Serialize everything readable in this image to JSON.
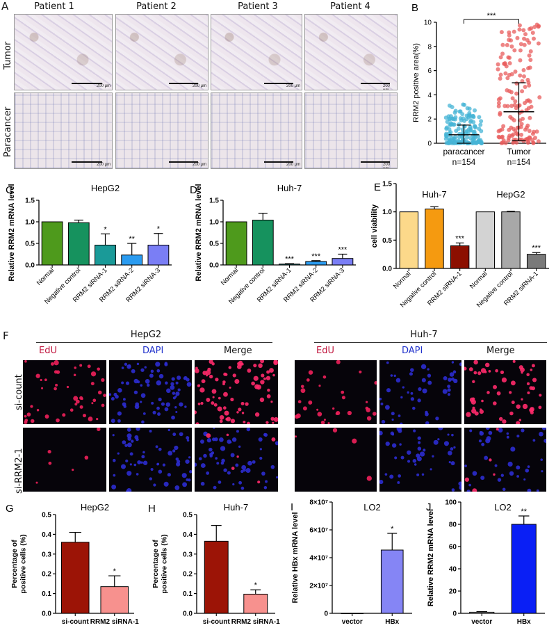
{
  "panels": {
    "A": {
      "letter": "A",
      "columns": [
        "Patient 1",
        "Patient 2",
        "Patient 3",
        "Patient 4"
      ],
      "rows": [
        "Tumor",
        "Paracancer"
      ],
      "scale_text": "200 μm"
    },
    "F": {
      "letter": "F",
      "groups": [
        {
          "title": "HepG2",
          "channels": [
            "EdU",
            "DAPI",
            "Merge"
          ]
        },
        {
          "title": "Huh-7",
          "channels": [
            "EdU",
            "DAPI",
            "Merge"
          ]
        }
      ],
      "rows": [
        "si-count",
        "si-RRM2-1"
      ]
    }
  },
  "colors": {
    "edu_label": "#c0143c",
    "dapi_label": "#2233cc"
  },
  "chart_data": [
    {
      "id": "B",
      "letter": "B",
      "type": "scatter",
      "title": "",
      "ylabel": "RRM2 positive area(%)",
      "ylim": [
        0,
        10
      ],
      "yticks": [
        "0",
        "2",
        "4",
        "6",
        "8",
        "10"
      ],
      "categories": [
        "paracancer",
        "Tumor"
      ],
      "n_labels": [
        "n=154",
        "n=154"
      ],
      "colors": [
        "#45b4d6",
        "#e85c5c"
      ],
      "summary": [
        {
          "mean": 0.7,
          "sd_low": 0.0,
          "sd_high": 1.5
        },
        {
          "mean": 2.6,
          "sd_low": 0.2,
          "sd_high": 5.0
        }
      ],
      "significance": "***"
    },
    {
      "id": "C",
      "letter": "C",
      "type": "bar",
      "title": "HepG2",
      "ylabel": "Relative RRM2 mRNA level",
      "ylim": [
        0,
        1.5
      ],
      "yticks": [
        "0.0",
        "0.5",
        "1.0",
        "1.5"
      ],
      "categories": [
        "Normal",
        "Negative control",
        "RRM2 siRNA-1",
        "RRM2 siRNA-2",
        "RRM2 siRNA-3"
      ],
      "values": [
        1.0,
        0.98,
        0.46,
        0.23,
        0.46
      ],
      "errors": [
        0,
        0.06,
        0.26,
        0.27,
        0.27
      ],
      "significance": [
        "",
        "",
        "*",
        "**",
        "*"
      ],
      "colors": [
        "#4e9a1c",
        "#16925e",
        "#1a9a98",
        "#2a9bf0",
        "#7a7ef5"
      ]
    },
    {
      "id": "D",
      "letter": "D",
      "type": "bar",
      "title": "Huh-7",
      "ylabel": "Relative RRM2 mRNA level",
      "ylim": [
        0,
        1.5
      ],
      "yticks": [
        "0.0",
        "0.5",
        "1.0",
        "1.5"
      ],
      "categories": [
        "Normal",
        "Negative control",
        "RRM2 siRNA-1",
        "RRM2 siRNA-2",
        "RRM2 siRNA-3"
      ],
      "values": [
        1.0,
        1.04,
        0.02,
        0.08,
        0.15
      ],
      "errors": [
        0,
        0.16,
        0.01,
        0.02,
        0.1
      ],
      "significance": [
        "",
        "",
        "***",
        "***",
        "***"
      ],
      "colors": [
        "#4e9a1c",
        "#16925e",
        "#1a9a98",
        "#2a9bf0",
        "#7a7ef5"
      ]
    },
    {
      "id": "E",
      "letter": "E",
      "type": "bar",
      "title": "",
      "ylabel": "cell viability",
      "ylim": [
        0,
        1.5
      ],
      "yticks": [
        "0.0",
        "0.5",
        "1.0",
        "1.5"
      ],
      "group_labels": [
        "Huh-7",
        "HepG2"
      ],
      "categories": [
        "Normal",
        "Negative control",
        "RRM2 siRNA-1",
        "Normal",
        "Negative control",
        "RRM2 siRNA-1"
      ],
      "values": [
        1.0,
        1.05,
        0.4,
        1.0,
        1.0,
        0.25
      ],
      "errors": [
        0,
        0.04,
        0.05,
        0,
        0.01,
        0.03
      ],
      "significance": [
        "",
        "",
        "***",
        "",
        "",
        "***"
      ],
      "colors": [
        "#fcd98a",
        "#f59a10",
        "#8c0f00",
        "#d3d3d3",
        "#a8a8a8",
        "#7a7a7a"
      ]
    },
    {
      "id": "G",
      "letter": "G",
      "type": "bar",
      "title": "HepG2",
      "ylabel": "Percentage of positive cells (%)",
      "ylim": [
        0,
        0.5
      ],
      "yticks": [
        "0.0",
        "0.1",
        "0.2",
        "0.3",
        "0.4",
        "0.5"
      ],
      "categories": [
        "si-count",
        "RRM2 siRNA-1"
      ],
      "values": [
        0.36,
        0.135
      ],
      "errors": [
        0.05,
        0.055
      ],
      "significance": [
        "",
        "*"
      ],
      "colors": [
        "#9c1406",
        "#f7918e"
      ]
    },
    {
      "id": "H",
      "letter": "H",
      "type": "bar",
      "title": "Huh-7",
      "ylabel": "Percentage of positive cells (%)",
      "ylim": [
        0,
        0.5
      ],
      "yticks": [
        "0.0",
        "0.1",
        "0.2",
        "0.3",
        "0.4",
        "0.5"
      ],
      "categories": [
        "si-count",
        "RRM2 siRNA-1"
      ],
      "values": [
        0.365,
        0.097
      ],
      "errors": [
        0.08,
        0.022
      ],
      "significance": [
        "",
        "*"
      ],
      "colors": [
        "#9c1406",
        "#f7918e"
      ]
    },
    {
      "id": "I",
      "letter": "I",
      "type": "bar",
      "title": "LO2",
      "ylabel": "Relative HBx mRNA level",
      "ylim": [
        0,
        80000000
      ],
      "yticks": [
        "0",
        "2×10⁷",
        "4×10⁷",
        "6×10⁷",
        "8×10⁷"
      ],
      "categories": [
        "vector",
        "HBx"
      ],
      "values": [
        0,
        45500000
      ],
      "errors": [
        0,
        12000000
      ],
      "significance": [
        "",
        "*"
      ],
      "colors": [
        "#ffffff",
        "#8585f5"
      ]
    },
    {
      "id": "J",
      "letter": "J",
      "type": "bar",
      "title": "LO2",
      "ylabel": "Relative RRM2 mRNA level",
      "ylim": [
        0,
        100
      ],
      "yticks": [
        "0",
        "20",
        "40",
        "60",
        "80",
        "100"
      ],
      "categories": [
        "vector",
        "HBx"
      ],
      "values": [
        1,
        80
      ],
      "errors": [
        0.5,
        7.5
      ],
      "significance": [
        "",
        "**"
      ],
      "colors": [
        "#ffffff",
        "#0a1ff5"
      ]
    }
  ]
}
